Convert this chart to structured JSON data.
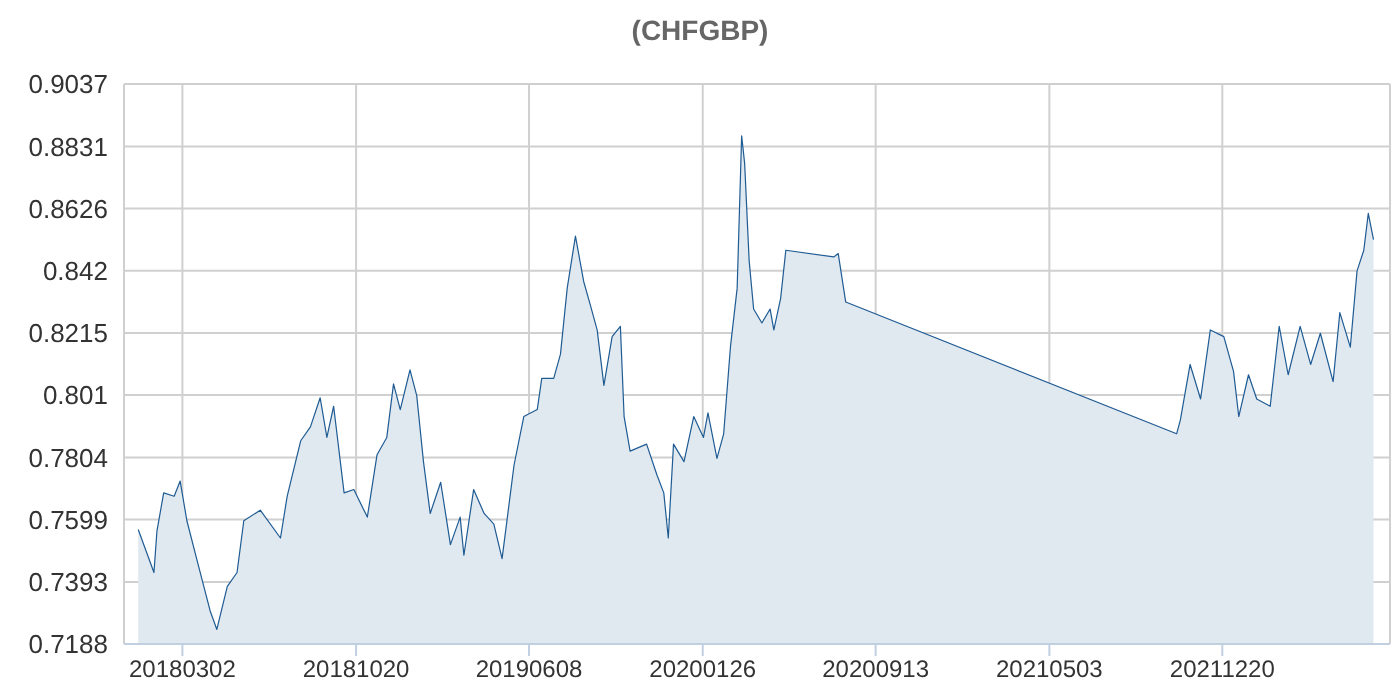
{
  "chart_data": {
    "type": "area",
    "title": "(CHFGBP)",
    "x": [
      "2018-01-02",
      "2018-01-23",
      "2018-01-27",
      "2018-02-05",
      "2018-02-19",
      "2018-02-27",
      "2018-03-08",
      "2018-03-21",
      "2018-04-08",
      "2018-04-17",
      "2018-05-01",
      "2018-05-14",
      "2018-05-23",
      "2018-06-14",
      "2018-07-11",
      "2018-07-20",
      "2018-08-07",
      "2018-08-20",
      "2018-09-02",
      "2018-09-11",
      "2018-09-20",
      "2018-10-04",
      "2018-10-17",
      "2018-11-04",
      "2018-11-17",
      "2018-11-30",
      "2018-12-09",
      "2018-12-18",
      "2018-12-31",
      "2019-01-09",
      "2019-01-18",
      "2019-01-27",
      "2019-02-10",
      "2019-02-23",
      "2019-03-08",
      "2019-03-13",
      "2019-03-26",
      "2019-04-09",
      "2019-04-22",
      "2019-05-03",
      "2019-05-19",
      "2019-06-01",
      "2019-06-19",
      "2019-06-25",
      "2019-07-11",
      "2019-07-20",
      "2019-07-29",
      "2019-08-09",
      "2019-08-20",
      "2019-08-29",
      "2019-09-07",
      "2019-09-16",
      "2019-09-27",
      "2019-10-08",
      "2019-10-13",
      "2019-10-21",
      "2019-11-12",
      "2019-11-26",
      "2019-12-05",
      "2019-12-11",
      "2019-12-18",
      "2020-01-01",
      "2020-01-14",
      "2020-01-27",
      "2020-02-02",
      "2020-02-14",
      "2020-02-23",
      "2020-03-03",
      "2020-03-12",
      "2020-03-18",
      "2020-03-22",
      "2020-03-28",
      "2020-04-03",
      "2020-04-14",
      "2020-04-25",
      "2020-04-30",
      "2020-05-09",
      "2020-05-16",
      "2020-07-19",
      "2020-07-25",
      "2020-08-04",
      "2021-10-20",
      "2021-10-25",
      "2021-11-07",
      "2021-11-21",
      "2021-12-04",
      "2021-12-22",
      "2022-01-04",
      "2022-01-11",
      "2022-01-24",
      "2022-02-04",
      "2022-02-22",
      "2022-03-06",
      "2022-03-18",
      "2022-04-03",
      "2022-04-17",
      "2022-04-30",
      "2022-05-17",
      "2022-05-26",
      "2022-06-09",
      "2022-06-18",
      "2022-06-27",
      "2022-07-03",
      "2022-07-10"
    ],
    "series": [
      {
        "color": "#1f5b93",
        "values": [
          0.7566,
          0.7424,
          0.7561,
          0.7687,
          0.7676,
          0.7726,
          0.7595,
          0.747,
          0.7298,
          0.7236,
          0.7378,
          0.7424,
          0.7595,
          0.763,
          0.7538,
          0.7676,
          0.7859,
          0.7905,
          0.8001,
          0.787,
          0.7973,
          0.7687,
          0.7698,
          0.7607,
          0.7813,
          0.787,
          0.8047,
          0.7962,
          0.8093,
          0.8008,
          0.779,
          0.7619,
          0.7722,
          0.7516,
          0.7607,
          0.7481,
          0.7698,
          0.7619,
          0.7584,
          0.747,
          0.7779,
          0.7939,
          0.7962,
          0.8065,
          0.8065,
          0.8145,
          0.8363,
          0.8535,
          0.8385,
          0.8306,
          0.8225,
          0.8042,
          0.8203,
          0.8237,
          0.7939,
          0.7825,
          0.7848,
          0.7745,
          0.7687,
          0.7538,
          0.7848,
          0.779,
          0.7939,
          0.787,
          0.7951,
          0.7801,
          0.7882,
          0.8168,
          0.8363,
          0.8866,
          0.8775,
          0.8454,
          0.8294,
          0.8248,
          0.8294,
          0.8225,
          0.8328,
          0.8488,
          0.8466,
          0.8477,
          0.8317,
          0.7882,
          0.7928,
          0.8111,
          0.7997,
          0.8225,
          0.8203,
          0.8088,
          0.7939,
          0.8077,
          0.7997,
          0.7973,
          0.8237,
          0.8077,
          0.8237,
          0.8111,
          0.8214,
          0.8054,
          0.8282,
          0.8168,
          0.842,
          0.8488,
          0.861,
          0.8523
        ]
      }
    ],
    "xlim": [
      "2017-12-14",
      "2022-08-01"
    ],
    "xticks": [
      {
        "value": "2018-03-02",
        "label": "20180302"
      },
      {
        "value": "2018-10-20",
        "label": "20181020"
      },
      {
        "value": "2019-06-08",
        "label": "20190608"
      },
      {
        "value": "2020-01-26",
        "label": "20200126"
      },
      {
        "value": "2020-09-13",
        "label": "20200913"
      },
      {
        "value": "2021-05-03",
        "label": "20210503"
      },
      {
        "value": "2021-12-20",
        "label": "20211220"
      }
    ],
    "ylim": [
      0.7188,
      0.9037
    ],
    "yticks": [
      0.7188,
      0.7393,
      0.7599,
      0.7804,
      0.801,
      0.8215,
      0.842,
      0.8626,
      0.8831,
      0.9037
    ],
    "grid": true
  }
}
